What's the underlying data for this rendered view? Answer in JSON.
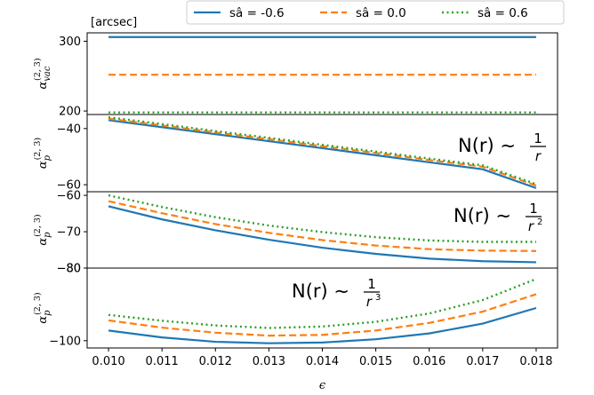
{
  "chart_data": {
    "type": "line",
    "x": [
      0.01,
      0.011,
      0.012,
      0.013,
      0.014,
      0.015,
      0.016,
      0.017,
      0.018
    ],
    "x_tick_labels": [
      "0.010",
      "0.011",
      "0.012",
      "0.013",
      "0.014",
      "0.015",
      "0.016",
      "0.017",
      "0.018"
    ],
    "xlabel": "ϵ",
    "xlim": [
      0.0096,
      0.0184
    ],
    "unit_label": "[arcsec]",
    "legend": {
      "placement": "top-right",
      "entries": [
        {
          "label": "sâ = -0.6",
          "color": "#1f77b4",
          "style": "solid"
        },
        {
          "label": "sâ = 0.0",
          "color": "#ff7f0e",
          "style": "dashed"
        },
        {
          "label": "sâ = 0.6",
          "color": "#2ca02c",
          "style": "dotted"
        }
      ]
    },
    "panels": [
      {
        "ylabel_main": "α",
        "ylabel_sup": "(2, 3)",
        "ylabel_sub": "vac",
        "ylim": [
          195,
          312
        ],
        "yticks": [
          200,
          300
        ],
        "ytick_labels": [
          "200",
          "300"
        ],
        "annotation": null,
        "series": [
          {
            "values": [
              306,
              306,
              306,
              306,
              306,
              306,
              306,
              306,
              306
            ]
          },
          {
            "values": [
              252,
              252,
              252,
              252,
              252,
              252,
              252,
              252,
              252
            ]
          },
          {
            "values": [
              198,
              198,
              198,
              198,
              198,
              198,
              198,
              198,
              198
            ]
          }
        ]
      },
      {
        "ylabel_main": "α",
        "ylabel_sup": "(2, 3)",
        "ylabel_sub": "p",
        "ylim": [
          -62.5,
          -35
        ],
        "yticks": [
          -40,
          -60
        ],
        "ytick_labels": [
          "−40",
          "−60"
        ],
        "annotation": {
          "lhs": "N(r) ∼",
          "num": "1",
          "den": "r",
          "den_sup": ""
        },
        "series": [
          {
            "values": [
              -37.0,
              -39.5,
              -42.0,
              -44.5,
              -47.0,
              -49.5,
              -52.0,
              -54.5,
              -61.2
            ]
          },
          {
            "values": [
              -36.5,
              -38.9,
              -41.4,
              -43.8,
              -46.3,
              -48.7,
              -51.2,
              -53.6,
              -60.3
            ]
          },
          {
            "values": [
              -36.0,
              -38.4,
              -40.9,
              -43.3,
              -45.8,
              -48.2,
              -50.7,
              -53.1,
              -59.8
            ]
          }
        ]
      },
      {
        "ylabel_main": "α",
        "ylabel_sup": "(2, 3)",
        "ylabel_sub": "p",
        "ylim": [
          -80,
          -59
        ],
        "yticks": [
          -60,
          -70,
          -80
        ],
        "ytick_labels": [
          "−60",
          "−70",
          "−80"
        ],
        "annotation": {
          "lhs": "N(r) ∼",
          "num": "1",
          "den": "r",
          "den_sup": "2"
        },
        "series": [
          {
            "values": [
              -63.0,
              -66.6,
              -69.6,
              -72.2,
              -74.4,
              -76.1,
              -77.4,
              -78.1,
              -78.4
            ]
          },
          {
            "values": [
              -61.6,
              -64.9,
              -67.9,
              -70.3,
              -72.3,
              -73.8,
              -74.8,
              -75.2,
              -75.3
            ]
          },
          {
            "values": [
              -60.0,
              -63.2,
              -66.0,
              -68.3,
              -70.1,
              -71.5,
              -72.4,
              -72.8,
              -72.8
            ]
          }
        ]
      },
      {
        "ylabel_main": "α",
        "ylabel_sup": "(2, 3)",
        "ylabel_sub": "p",
        "ylim": [
          -102,
          -80
        ],
        "yticks": [
          -80,
          -100
        ],
        "ytick_labels": [
          "−80",
          "−100"
        ],
        "annotation": {
          "lhs": "N(r) ∼",
          "num": "1",
          "den": "r",
          "den_sup": "3"
        },
        "series": [
          {
            "values": [
              -97.2,
              -99.1,
              -100.3,
              -100.7,
              -100.5,
              -99.6,
              -98.0,
              -95.3,
              -91.0
            ]
          },
          {
            "values": [
              -94.4,
              -96.4,
              -97.8,
              -98.6,
              -98.4,
              -97.2,
              -95.1,
              -92.0,
              -87.2
            ]
          },
          {
            "values": [
              -92.9,
              -94.5,
              -95.8,
              -96.5,
              -96.1,
              -94.8,
              -92.5,
              -88.8,
              -83.0
            ]
          }
        ]
      }
    ]
  }
}
